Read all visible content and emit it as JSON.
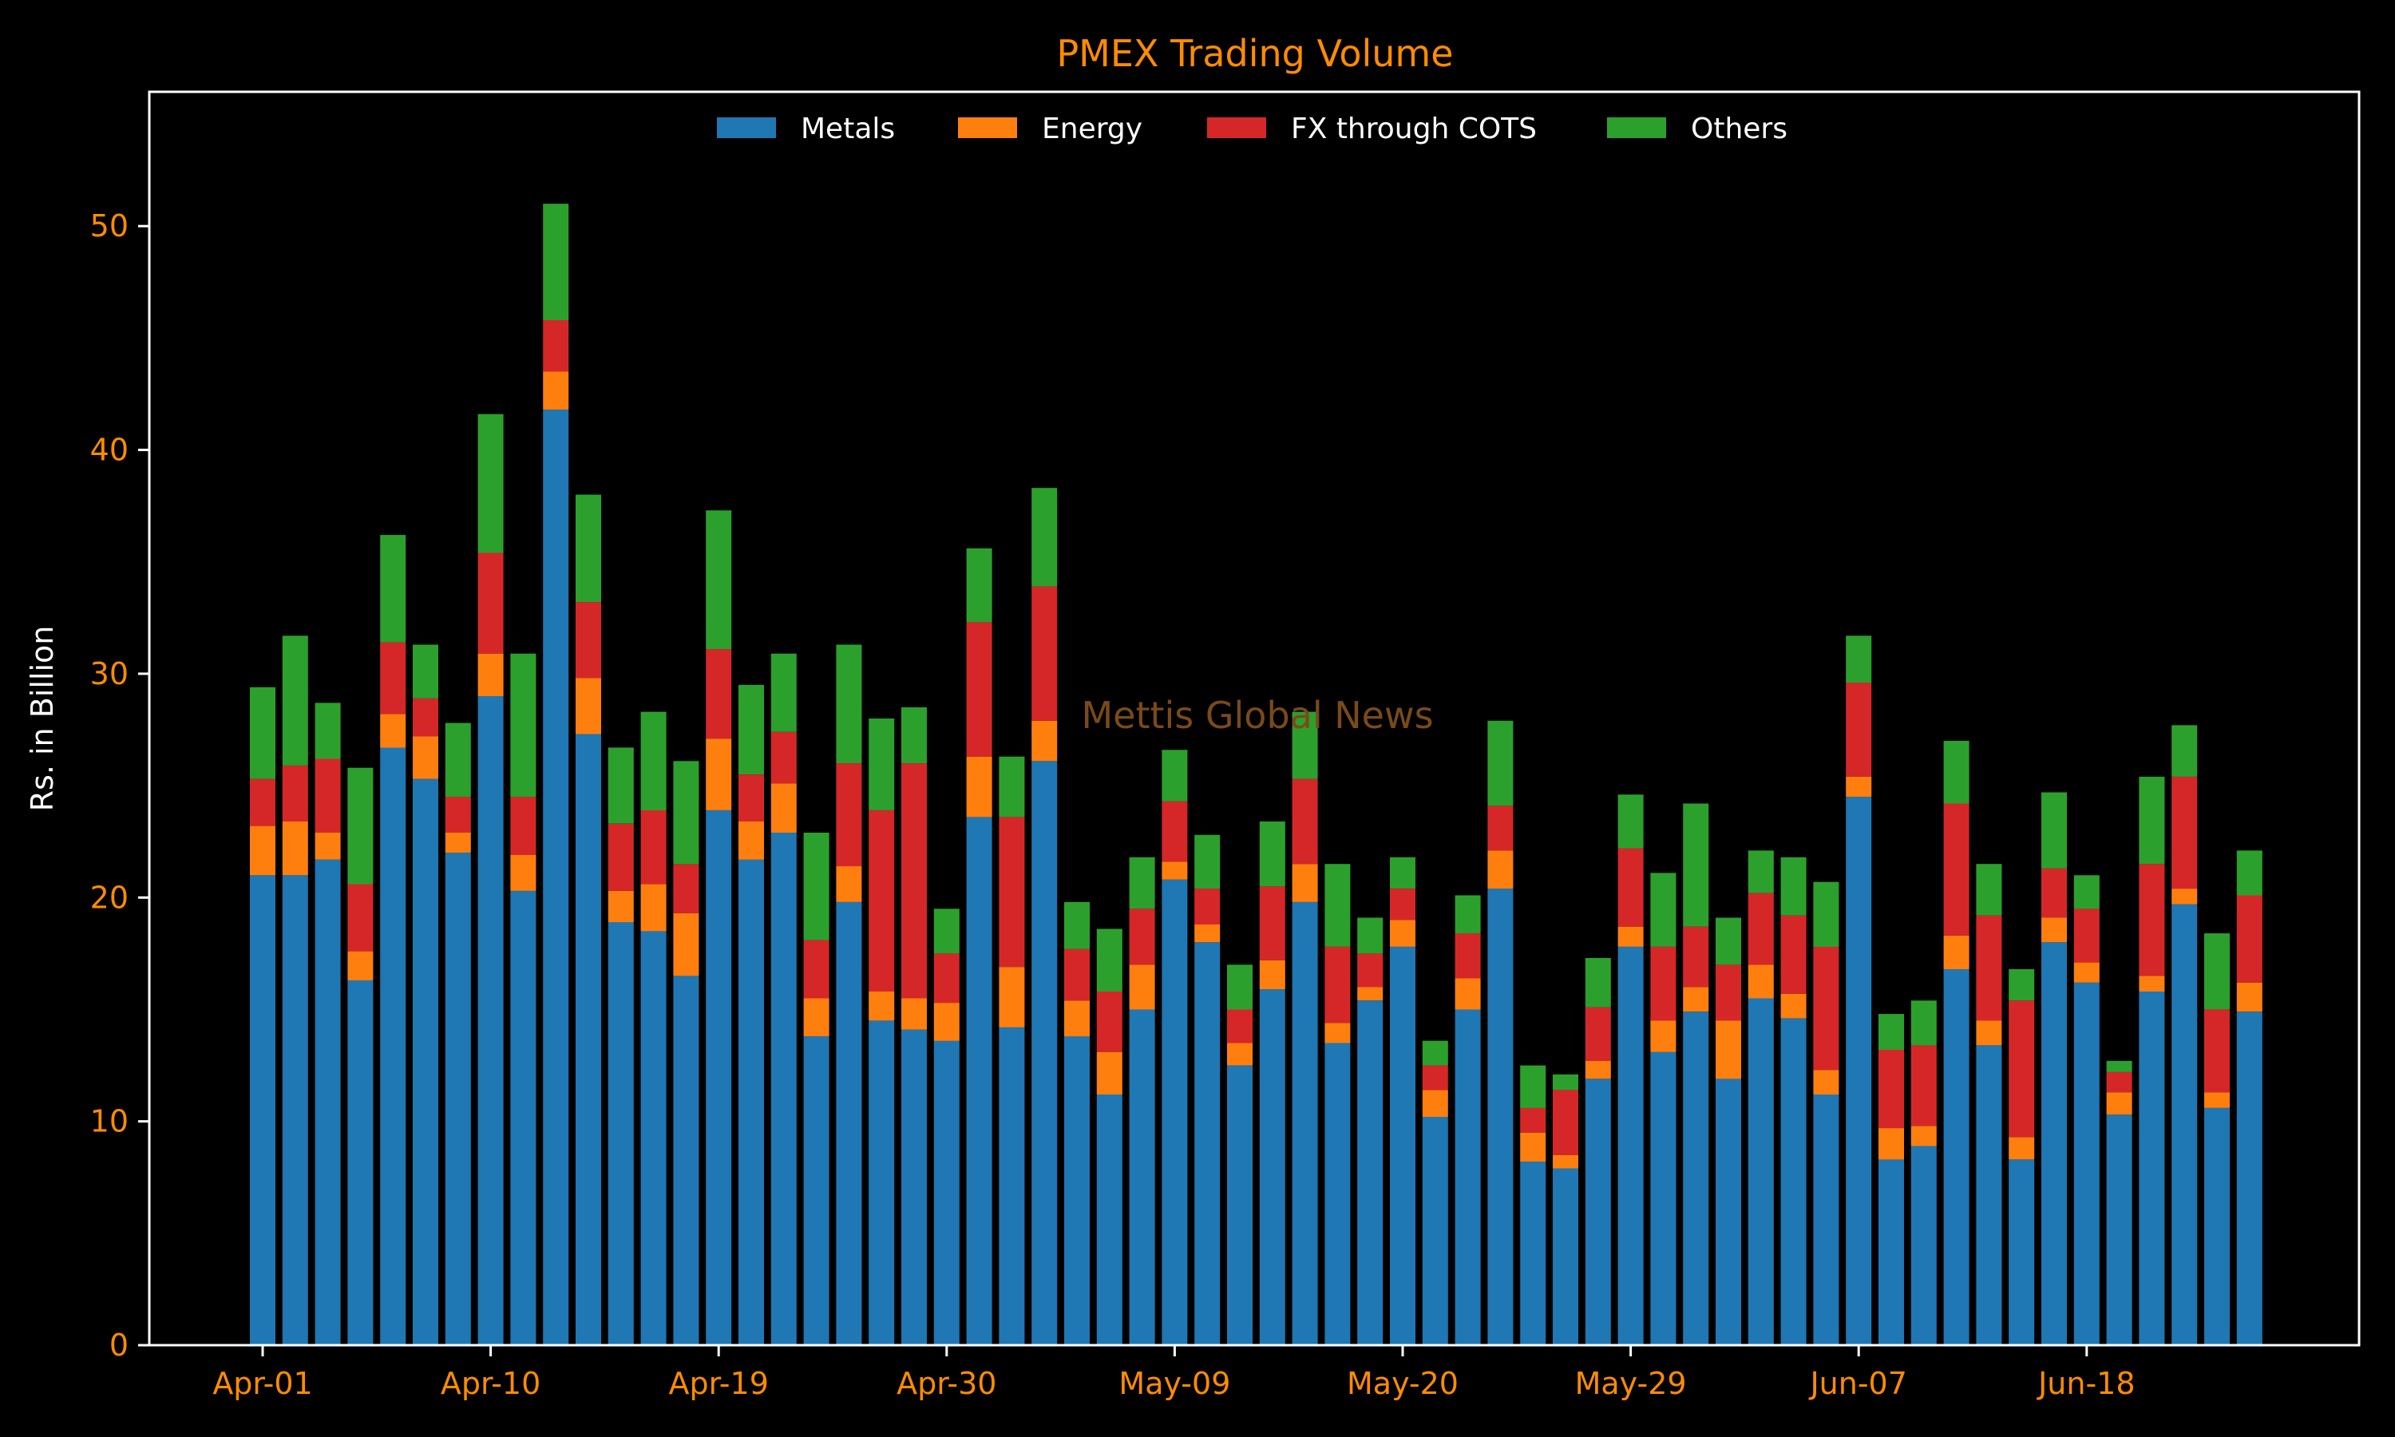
{
  "chart_data": {
    "type": "bar",
    "stacked": true,
    "title": "PMEX Trading Volume",
    "ylabel": "Rs. in Billion",
    "xlabel": "",
    "ylim": [
      0,
      56
    ],
    "yticks": [
      0,
      10,
      20,
      30,
      40,
      50
    ],
    "xtick_labels": [
      "Apr-01",
      "Apr-10",
      "Apr-19",
      "Apr-30",
      "May-09",
      "May-20",
      "May-29",
      "Jun-07",
      "Jun-18"
    ],
    "xtick_positions": [
      0,
      7,
      14,
      21,
      28,
      35,
      42,
      49,
      56
    ],
    "legend_position": "top-center",
    "grid": false,
    "watermark": "Mettis Global News",
    "colors": {
      "background": "#000000",
      "axes": "#ffffff",
      "title": "#ff8c00",
      "ticks": "#ff8c00",
      "ylabel": "#ffffff",
      "legend_text": "#ffffff",
      "watermark": "#7a4a1a"
    },
    "series": [
      {
        "name": "Metals",
        "color": "#1f77b4",
        "values": [
          21.0,
          21.0,
          21.7,
          16.3,
          26.7,
          25.3,
          22.0,
          29.0,
          20.3,
          41.8,
          27.3,
          18.9,
          18.5,
          16.5,
          23.9,
          21.7,
          22.9,
          13.8,
          19.8,
          14.5,
          14.1,
          13.6,
          23.6,
          14.2,
          26.1,
          13.8,
          11.2,
          15.0,
          20.8,
          18.0,
          12.5,
          15.9,
          19.8,
          13.5,
          15.4,
          17.8,
          10.2,
          15.0,
          20.4,
          8.2,
          7.9,
          11.9,
          17.8,
          13.1,
          14.9,
          11.9,
          15.5,
          14.6,
          11.2,
          24.5,
          8.3,
          8.9,
          16.8,
          13.4,
          8.3,
          18.0,
          16.2,
          10.3,
          15.8,
          19.7,
          10.6,
          14.9
        ]
      },
      {
        "name": "Energy",
        "color": "#ff7f0e",
        "values": [
          2.2,
          2.4,
          1.2,
          1.3,
          1.5,
          1.9,
          0.9,
          1.9,
          1.6,
          1.7,
          2.5,
          1.4,
          2.1,
          2.8,
          3.2,
          1.7,
          2.2,
          1.7,
          1.6,
          1.3,
          1.4,
          1.7,
          2.7,
          2.7,
          1.8,
          1.6,
          1.9,
          2.0,
          0.8,
          0.8,
          1.0,
          1.3,
          1.7,
          0.9,
          0.6,
          1.2,
          1.2,
          1.4,
          1.7,
          1.3,
          0.6,
          0.8,
          0.9,
          1.4,
          1.1,
          2.6,
          1.5,
          1.1,
          1.1,
          0.9,
          1.4,
          0.9,
          1.5,
          1.1,
          1.0,
          1.1,
          0.9,
          1.0,
          0.7,
          0.7,
          0.7,
          1.3
        ]
      },
      {
        "name": "FX through COTS",
        "color": "#d62728",
        "values": [
          2.1,
          2.5,
          3.3,
          3.0,
          3.2,
          1.7,
          1.6,
          4.5,
          2.6,
          2.3,
          3.4,
          3.0,
          3.3,
          2.2,
          4.0,
          2.1,
          2.3,
          2.6,
          4.6,
          8.1,
          10.5,
          2.2,
          6.0,
          6.7,
          6.0,
          2.3,
          2.7,
          2.5,
          2.7,
          1.6,
          1.5,
          3.3,
          3.8,
          3.4,
          1.5,
          1.4,
          1.1,
          2.0,
          2.0,
          1.1,
          2.9,
          2.4,
          3.5,
          3.3,
          2.7,
          2.5,
          3.2,
          3.5,
          5.5,
          4.2,
          3.5,
          3.6,
          5.9,
          4.7,
          6.1,
          2.2,
          2.4,
          0.9,
          5.0,
          5.0,
          3.7,
          3.9
        ]
      },
      {
        "name": "Others",
        "color": "#2ca02c",
        "values": [
          4.1,
          5.8,
          2.5,
          5.2,
          4.8,
          2.4,
          3.3,
          6.2,
          6.4,
          5.2,
          4.8,
          3.4,
          4.4,
          4.6,
          6.2,
          4.0,
          3.5,
          4.8,
          5.3,
          4.1,
          2.5,
          2.0,
          3.3,
          2.7,
          4.4,
          2.1,
          2.8,
          2.3,
          2.3,
          2.4,
          2.0,
          2.9,
          3.0,
          3.7,
          1.6,
          1.4,
          1.1,
          1.7,
          3.8,
          1.9,
          0.7,
          2.2,
          2.4,
          3.3,
          5.5,
          2.1,
          1.9,
          2.6,
          2.9,
          2.1,
          1.6,
          2.0,
          2.8,
          2.3,
          1.4,
          3.4,
          1.5,
          0.5,
          3.9,
          2.3,
          3.4,
          2.0
        ]
      }
    ]
  }
}
